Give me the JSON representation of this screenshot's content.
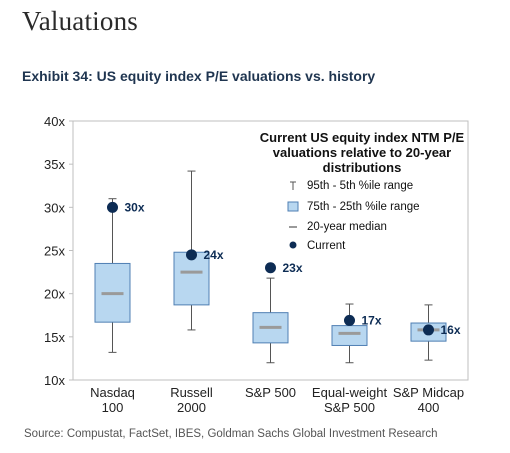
{
  "page_title": "Valuations",
  "exhibit_title": "Exhibit 34: US equity index P/E valuations vs. history",
  "source": "Source: Compustat, FactSet, IBES, Goldman Sachs Global Investment Research",
  "chart_data": {
    "type": "box",
    "title": "Current US equity index NTM P/E valuations relative to 20-year distributions",
    "title_lines": [
      "Current US equity index NTM P/E",
      "valuations relative to 20-year",
      "distributions"
    ],
    "xlabel": "",
    "ylabel": "",
    "ylim": [
      10,
      40
    ],
    "yticks": [
      10,
      15,
      20,
      25,
      30,
      35,
      40
    ],
    "ytick_labels": [
      "10x",
      "15x",
      "20x",
      "25x",
      "30x",
      "35x",
      "40x"
    ],
    "grid": false,
    "legend_position": "top-right",
    "legend": [
      {
        "key": "range",
        "label": "95th - 5th %ile range"
      },
      {
        "key": "iqr",
        "label": "75th - 25th %ile range"
      },
      {
        "key": "median",
        "label": "20-year median"
      },
      {
        "key": "current",
        "label": "Current"
      }
    ],
    "categories": [
      {
        "label_lines": [
          "Nasdaq",
          "100"
        ],
        "p5": 13.2,
        "p25": 16.7,
        "median": 20.0,
        "p75": 23.5,
        "p95": 31.0,
        "current": 30.0,
        "current_label": "30x"
      },
      {
        "label_lines": [
          "Russell",
          "2000"
        ],
        "p5": 15.8,
        "p25": 18.7,
        "median": 22.5,
        "p75": 24.8,
        "p95": 34.2,
        "current": 24.5,
        "current_label": "24x"
      },
      {
        "label_lines": [
          "S&P 500"
        ],
        "p5": 12.0,
        "p25": 14.3,
        "median": 16.1,
        "p75": 17.8,
        "p95": 21.8,
        "current": 23.0,
        "current_label": "23x"
      },
      {
        "label_lines": [
          "Equal-weight",
          "S&P 500"
        ],
        "p5": 12.0,
        "p25": 14.0,
        "median": 15.4,
        "p75": 16.3,
        "p95": 18.8,
        "current": 16.9,
        "current_label": "17x"
      },
      {
        "label_lines": [
          "S&P Midcap",
          "400"
        ],
        "p5": 12.3,
        "p25": 14.5,
        "median": 15.8,
        "p75": 16.6,
        "p95": 18.7,
        "current": 15.8,
        "current_label": "16x"
      }
    ],
    "colors": {
      "box_fill": "#b8d7f0",
      "box_stroke": "#4f7fb3",
      "median": "#9a9a9a",
      "whisker": "#555555",
      "current": "#0d2c54",
      "label": "#0d2c54",
      "axis": "#bfbfbf"
    }
  }
}
